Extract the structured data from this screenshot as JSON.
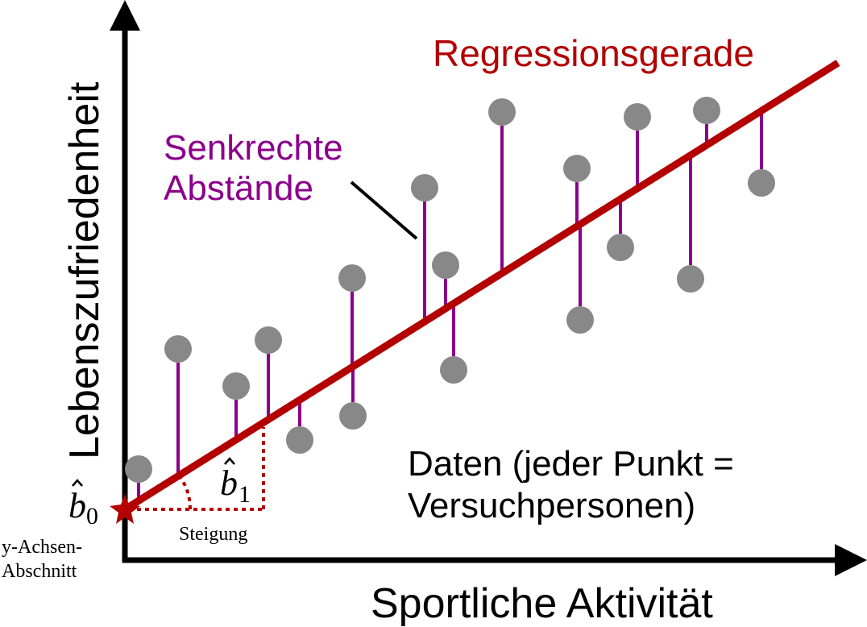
{
  "labels": {
    "regression_line": "Regressionsgerade",
    "residuals_line1": "Senkrechte",
    "residuals_line2": "Abstände",
    "data_line1": "Daten (jeder Punkt =",
    "data_line2": "Versuchpersonen)",
    "y_axis": "Lebenszufriedenheit",
    "x_axis": "Sportliche Aktivität",
    "intercept_symbol": "b",
    "intercept_subscript": "0",
    "intercept_line1": "y-Achsen-",
    "intercept_line2": "Abschnitt",
    "slope_symbol": "b",
    "slope_subscript": "1",
    "slope_text": "Steigung"
  },
  "colors": {
    "axis": "#000000",
    "regression": "#b30000",
    "residual": "#8b008b",
    "point": "#888888",
    "residual_label": "#8b008b",
    "regression_label": "#b30000"
  },
  "icons": {
    "intercept_marker": "star-icon"
  }
}
